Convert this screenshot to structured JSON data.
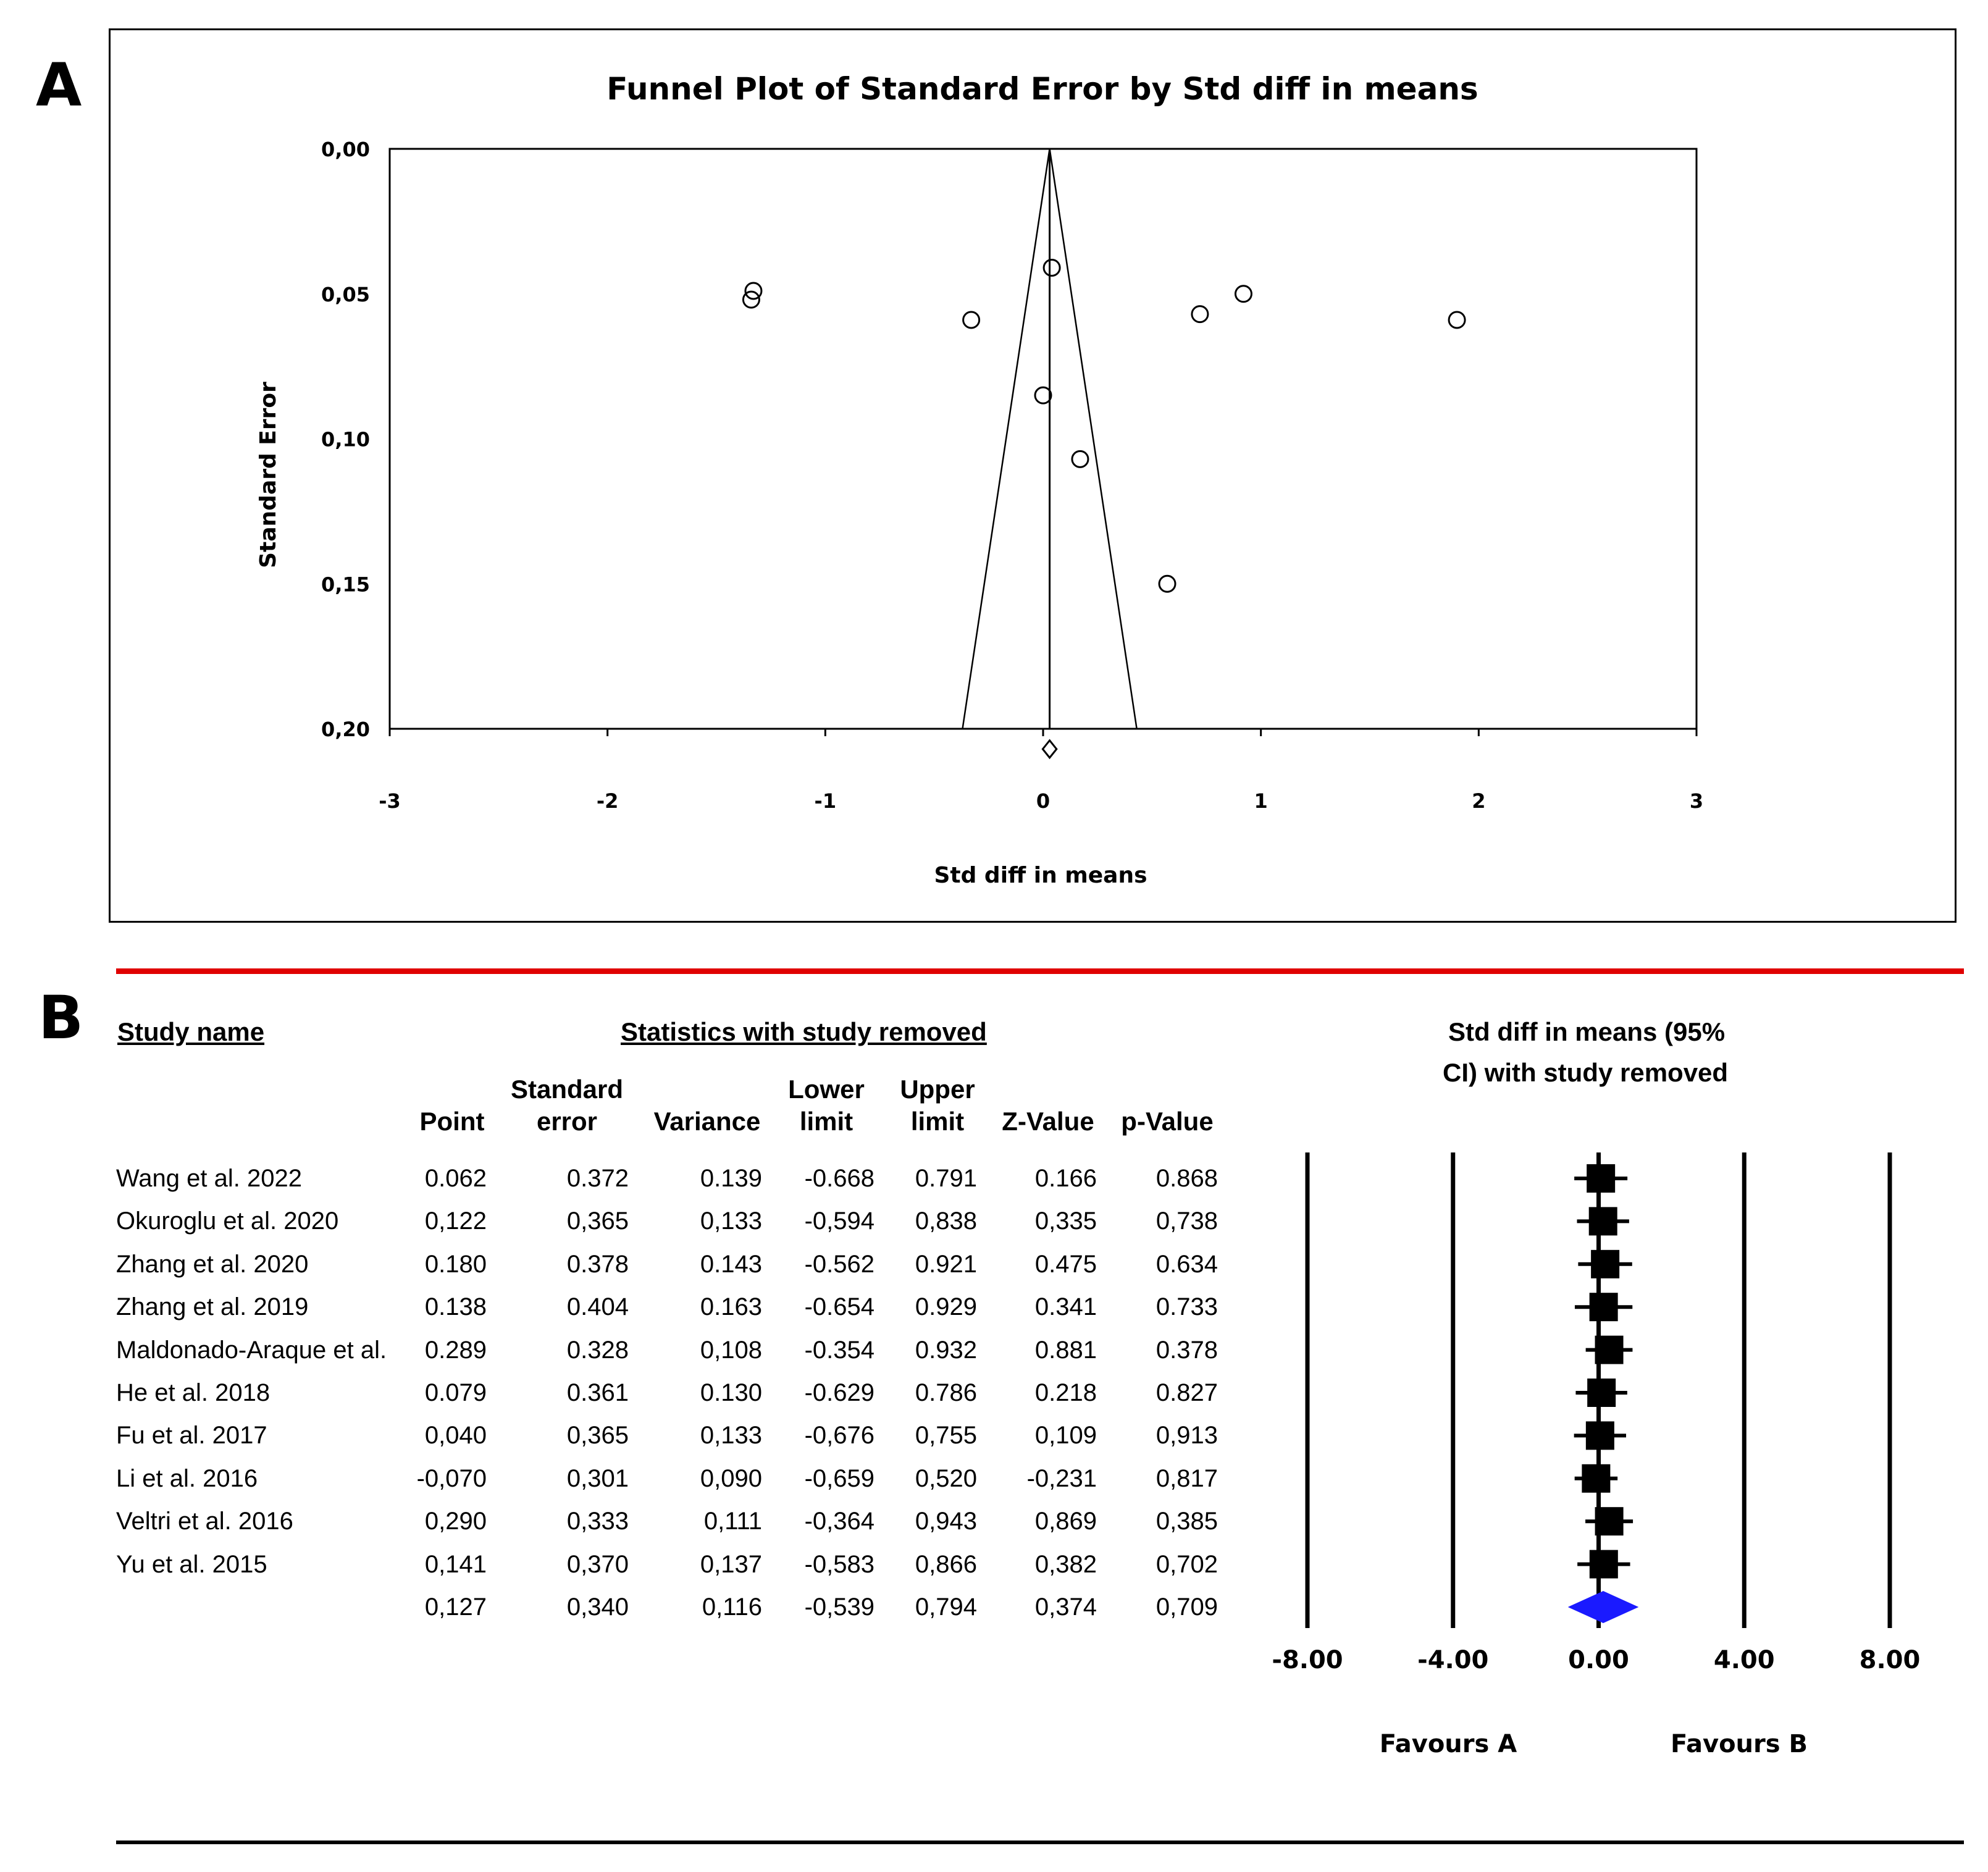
{
  "panels": {
    "a_label": "A",
    "b_label": "B"
  },
  "chart_data": [
    {
      "type": "scatter",
      "title": "Funnel Plot of Standard Error by Std diff in means",
      "xlabel": "Std diff in means",
      "ylabel": "Standard Error",
      "xlim": [
        -3,
        3
      ],
      "ylim": [
        0.2,
        0.0
      ],
      "y_axis_inverted": true,
      "x_ticks": [
        "-3",
        "-2",
        "-1",
        "0",
        "1",
        "2",
        "3"
      ],
      "y_ticks": [
        "0,00",
        "0,05",
        "0,10",
        "0,15",
        "0,20"
      ],
      "y_tick_values": [
        0.0,
        0.05,
        0.1,
        0.15,
        0.2
      ],
      "x_tick_values": [
        -3,
        -2,
        -1,
        0,
        1,
        2,
        3
      ],
      "points": [
        {
          "x": -1.33,
          "y": 0.049
        },
        {
          "x": -1.34,
          "y": 0.052
        },
        {
          "x": -0.33,
          "y": 0.059
        },
        {
          "x": 0.04,
          "y": 0.041
        },
        {
          "x": 0.72,
          "y": 0.057
        },
        {
          "x": 0.92,
          "y": 0.05
        },
        {
          "x": 1.9,
          "y": 0.059
        },
        {
          "x": 0.0,
          "y": 0.085
        },
        {
          "x": 0.17,
          "y": 0.107
        },
        {
          "x": 0.57,
          "y": 0.15
        }
      ],
      "summary_effect": 0.03,
      "summary_diamond": {
        "x": 0.03,
        "y": 0.207
      },
      "funnel_base": [
        -0.37,
        0.43
      ]
    },
    {
      "type": "table",
      "title": "Statistics with study removed",
      "study_header": "Study name",
      "right_title_line1": "Std diff in means (95%",
      "right_title_line2": "CI) with study removed",
      "columns": [
        {
          "l1": "",
          "l2": "Point"
        },
        {
          "l1": "Standard",
          "l2": "error"
        },
        {
          "l1": "",
          "l2": "Variance"
        },
        {
          "l1": "Lower",
          "l2": "limit"
        },
        {
          "l1": "Upper",
          "l2": "limit"
        },
        {
          "l1": "",
          "l2": "Z-Value"
        },
        {
          "l1": "",
          "l2": "p-Value"
        }
      ],
      "rows": [
        {
          "study": "Wang et al. 2022",
          "cells": [
            "0.062",
            "0.372",
            "0.139",
            "-0.668",
            "0.791",
            "0.166",
            "0.868"
          ],
          "point": 0.062,
          "lower": -0.668,
          "upper": 0.791
        },
        {
          "study": "Okuroglu et al. 2020",
          "cells": [
            "0,122",
            "0,365",
            "0,133",
            "-0,594",
            "0,838",
            "0,335",
            "0,738"
          ],
          "point": 0.122,
          "lower": -0.594,
          "upper": 0.838
        },
        {
          "study": "Zhang et al. 2020",
          "cells": [
            "0.180",
            "0.378",
            "0.143",
            "-0.562",
            "0.921",
            "0.475",
            "0.634"
          ],
          "point": 0.18,
          "lower": -0.562,
          "upper": 0.921
        },
        {
          "study": "Zhang et al. 2019",
          "cells": [
            "0.138",
            "0.404",
            "0.163",
            "-0.654",
            "0.929",
            "0.341",
            "0.733"
          ],
          "point": 0.138,
          "lower": -0.654,
          "upper": 0.929
        },
        {
          "study": "Maldonado-Araque et al.",
          "cells": [
            "0.289",
            "0.328",
            "0,108",
            "-0.354",
            "0.932",
            "0.881",
            "0.378"
          ],
          "point": 0.289,
          "lower": -0.354,
          "upper": 0.932
        },
        {
          "study": "He et al. 2018",
          "cells": [
            "0.079",
            "0.361",
            "0.130",
            "-0.629",
            "0.786",
            "0.218",
            "0.827"
          ],
          "point": 0.079,
          "lower": -0.629,
          "upper": 0.786
        },
        {
          "study": "Fu et al. 2017",
          "cells": [
            "0,040",
            "0,365",
            "0,133",
            "-0,676",
            "0,755",
            "0,109",
            "0,913"
          ],
          "point": 0.04,
          "lower": -0.676,
          "upper": 0.755
        },
        {
          "study": "Li et al. 2016",
          "cells": [
            "-0,070",
            "0,301",
            "0,090",
            "-0,659",
            "0,520",
            "-0,231",
            "0,817"
          ],
          "point": -0.07,
          "lower": -0.659,
          "upper": 0.52
        },
        {
          "study": "Veltri et al. 2016",
          "cells": [
            "0,290",
            "0,333",
            "0,111",
            "-0,364",
            "0,943",
            "0,869",
            "0,385"
          ],
          "point": 0.29,
          "lower": -0.364,
          "upper": 0.943
        },
        {
          "study": "Yu et al. 2015",
          "cells": [
            "0,141",
            "0,370",
            "0,137",
            "-0,583",
            "0,866",
            "0,382",
            "0,702"
          ],
          "point": 0.141,
          "lower": -0.583,
          "upper": 0.866
        }
      ],
      "summary": {
        "cells": [
          "0,127",
          "0,340",
          "0,116",
          "-0,539",
          "0,794",
          "0,374",
          "0,709"
        ],
        "point": 0.127,
        "lower": -0.539,
        "upper": 0.794
      },
      "forest_axis": {
        "ticks": [
          "-8.00",
          "-4.00",
          "0.00",
          "4.00",
          "8.00"
        ],
        "tick_values": [
          -8,
          -4,
          0,
          4,
          8
        ],
        "xlim": [
          -8,
          8
        ],
        "favours_left": "Favours A",
        "favours_right": "Favours B"
      },
      "colors": {
        "marker": "#000000",
        "summary": "#1a1aff",
        "rule": "#e00000"
      }
    }
  ]
}
